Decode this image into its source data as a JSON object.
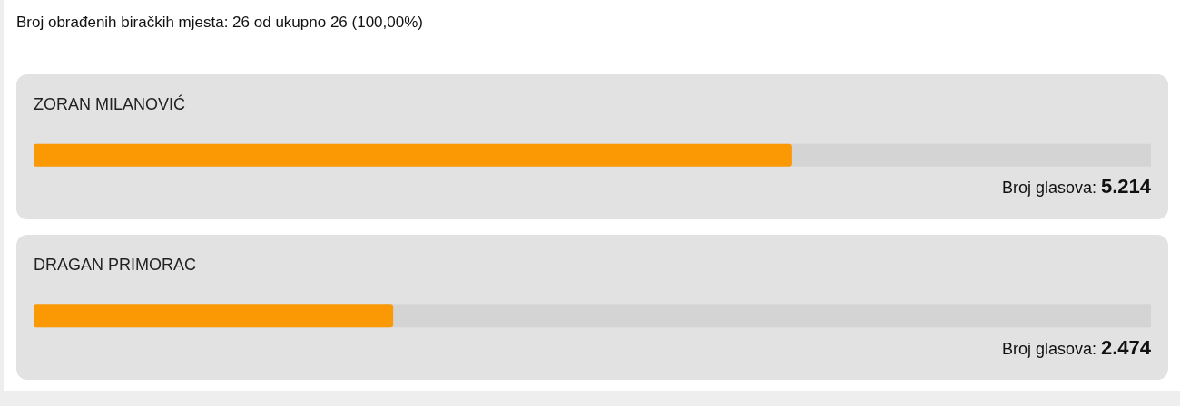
{
  "chart_data": {
    "type": "bar",
    "orientation": "horizontal",
    "title": "Broj obrađenih biračkih mjesta: 26 od ukupno 26 (100,00%)",
    "categories": [
      "ZORAN MILANOVIĆ",
      "DRAGAN PRIMORAC"
    ],
    "values": [
      5214,
      2474
    ],
    "value_labels": [
      "Broj glasova: 5.214",
      "Broj glasova: 2.474"
    ],
    "color": "#fb9904",
    "xlim": [
      0,
      7688
    ]
  }
}
